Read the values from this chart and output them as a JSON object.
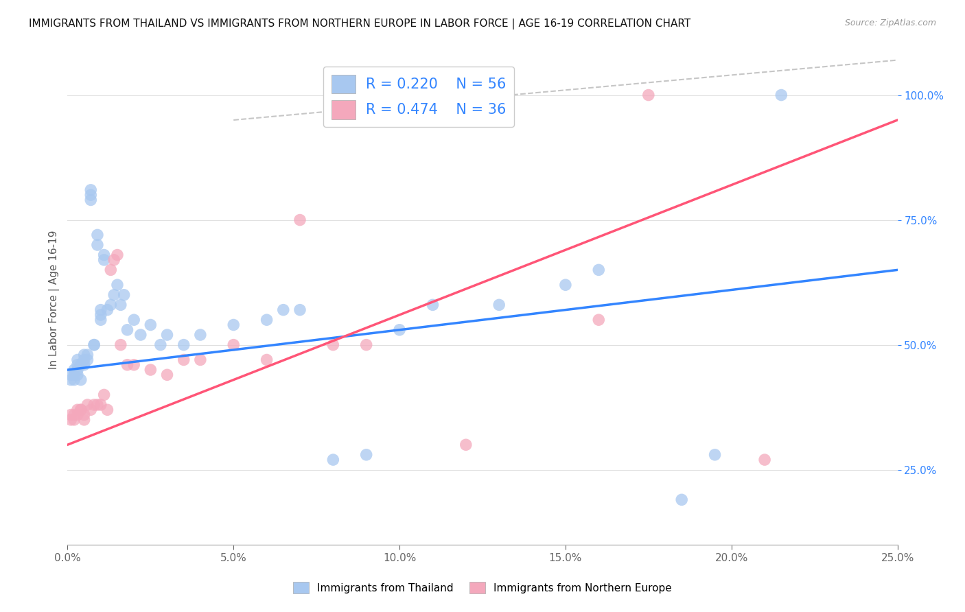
{
  "title": "IMMIGRANTS FROM THAILAND VS IMMIGRANTS FROM NORTHERN EUROPE IN LABOR FORCE | AGE 16-19 CORRELATION CHART",
  "source": "Source: ZipAtlas.com",
  "ylabel": "In Labor Force | Age 16-19",
  "xlim": [
    0.0,
    0.25
  ],
  "ylim": [
    0.1,
    1.08
  ],
  "x_ticks": [
    0.0,
    0.05,
    0.1,
    0.15,
    0.2,
    0.25
  ],
  "y_ticks_right": [
    0.25,
    0.5,
    0.75,
    1.0
  ],
  "blue_R": 0.22,
  "blue_N": 56,
  "pink_R": 0.474,
  "pink_N": 36,
  "blue_color": "#A8C8F0",
  "pink_color": "#F4A8BC",
  "blue_trend_color": "#3385FF",
  "pink_trend_color": "#FF5577",
  "blue_scatter_x": [
    0.001,
    0.001,
    0.002,
    0.002,
    0.002,
    0.003,
    0.003,
    0.003,
    0.003,
    0.004,
    0.004,
    0.005,
    0.005,
    0.005,
    0.006,
    0.006,
    0.007,
    0.007,
    0.007,
    0.008,
    0.008,
    0.009,
    0.009,
    0.01,
    0.01,
    0.01,
    0.011,
    0.011,
    0.012,
    0.013,
    0.014,
    0.015,
    0.016,
    0.017,
    0.018,
    0.02,
    0.022,
    0.025,
    0.028,
    0.03,
    0.035,
    0.04,
    0.05,
    0.06,
    0.065,
    0.07,
    0.08,
    0.09,
    0.1,
    0.11,
    0.13,
    0.15,
    0.16,
    0.185,
    0.195,
    0.215
  ],
  "blue_scatter_y": [
    0.43,
    0.44,
    0.43,
    0.44,
    0.45,
    0.44,
    0.45,
    0.46,
    0.47,
    0.43,
    0.46,
    0.47,
    0.48,
    0.46,
    0.47,
    0.48,
    0.79,
    0.8,
    0.81,
    0.5,
    0.5,
    0.7,
    0.72,
    0.55,
    0.56,
    0.57,
    0.67,
    0.68,
    0.57,
    0.58,
    0.6,
    0.62,
    0.58,
    0.6,
    0.53,
    0.55,
    0.52,
    0.54,
    0.5,
    0.52,
    0.5,
    0.52,
    0.54,
    0.55,
    0.57,
    0.57,
    0.27,
    0.28,
    0.53,
    0.58,
    0.58,
    0.62,
    0.65,
    0.19,
    0.28,
    1.0
  ],
  "pink_scatter_x": [
    0.001,
    0.001,
    0.002,
    0.002,
    0.003,
    0.003,
    0.004,
    0.004,
    0.005,
    0.005,
    0.006,
    0.007,
    0.008,
    0.009,
    0.01,
    0.011,
    0.012,
    0.013,
    0.014,
    0.015,
    0.016,
    0.018,
    0.02,
    0.025,
    0.03,
    0.035,
    0.04,
    0.05,
    0.06,
    0.07,
    0.08,
    0.09,
    0.12,
    0.16,
    0.175,
    0.21
  ],
  "pink_scatter_y": [
    0.35,
    0.36,
    0.35,
    0.36,
    0.37,
    0.36,
    0.37,
    0.37,
    0.35,
    0.36,
    0.38,
    0.37,
    0.38,
    0.38,
    0.38,
    0.4,
    0.37,
    0.65,
    0.67,
    0.68,
    0.5,
    0.46,
    0.46,
    0.45,
    0.44,
    0.47,
    0.47,
    0.5,
    0.47,
    0.75,
    0.5,
    0.5,
    0.3,
    0.55,
    1.0,
    0.27
  ],
  "background_color": "#FFFFFF",
  "grid_color": "#E0E0E0",
  "title_fontsize": 11,
  "axis_label_fontsize": 11,
  "tick_fontsize": 11
}
